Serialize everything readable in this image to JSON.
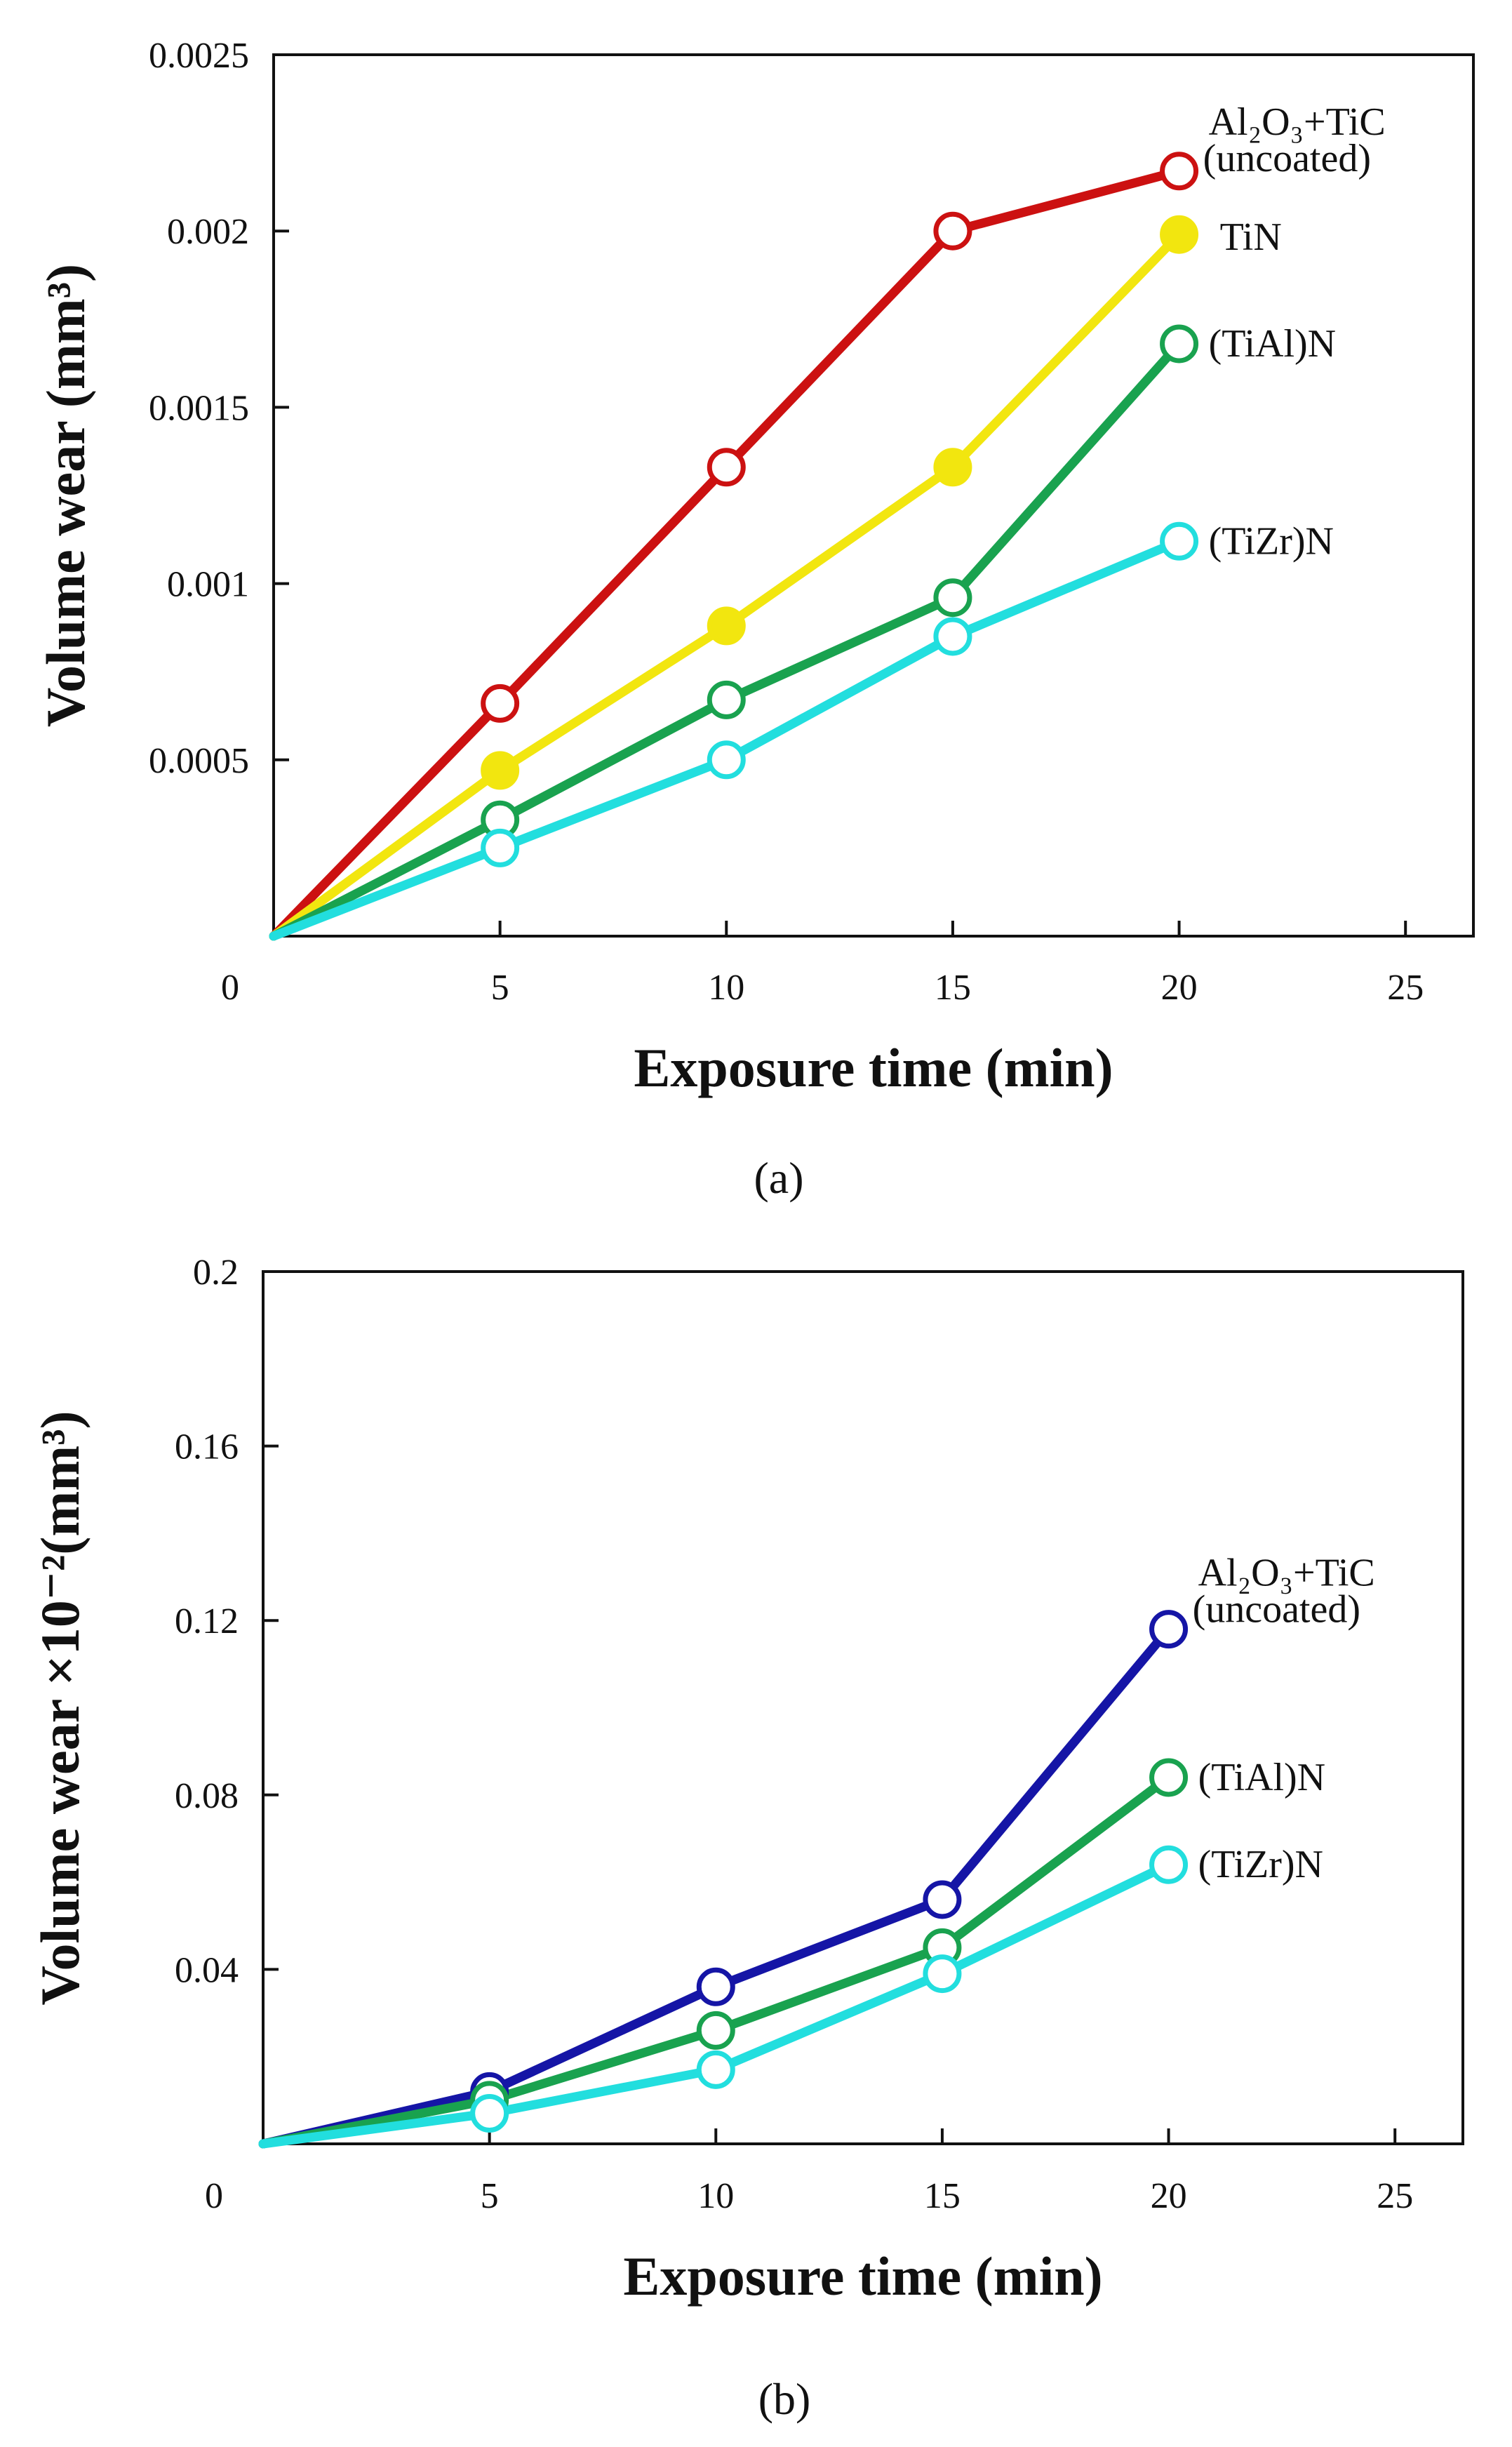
{
  "chart_data": [
    {
      "type": "line",
      "panel_label": "a",
      "panel_label_text": "(a)",
      "xlabel": "Exposure time (min)",
      "ylabel": "Volume wear (mm³)",
      "xlim": [
        0,
        26.5
      ],
      "ylim": [
        0,
        0.0025
      ],
      "x_ticks": [
        5,
        10,
        15,
        20,
        25
      ],
      "x_tick_labels": [
        "5",
        "10",
        "15",
        "20",
        "25"
      ],
      "y_ticks": [
        0.0005,
        0.001,
        0.0015,
        0.002,
        0.0025
      ],
      "y_tick_labels": [
        "0.0005",
        "0.001",
        "0.0015",
        "0.002",
        "0.0025"
      ],
      "origin_label": "0",
      "x": [
        0,
        5,
        10,
        15,
        20
      ],
      "series": [
        {
          "name": "Al2O3+TiC (uncoated)",
          "label_line1": "Al₂O₃+TiC",
          "label_line2": "(uncoated)",
          "color": "#cc1111",
          "marker": "open-circle",
          "values": [
            0,
            0.00066,
            0.00133,
            0.002,
            0.00217
          ]
        },
        {
          "name": "TiN",
          "label_line1": "TiN",
          "label_line2": "",
          "color": "#f2e60f",
          "marker": "filled-circle",
          "values": [
            0,
            0.00047,
            0.00088,
            0.00133,
            0.00199
          ]
        },
        {
          "name": "(TiAl)N",
          "label_line1": "(TiAl)N",
          "label_line2": "",
          "color": "#19a24f",
          "marker": "open-circle",
          "values": [
            0,
            0.00033,
            0.00067,
            0.00096,
            0.00168
          ]
        },
        {
          "name": "(TiZr)N",
          "label_line1": "(TiZr)N",
          "label_line2": "",
          "color": "#22dede",
          "marker": "open-circle",
          "values": [
            0,
            0.00025,
            0.0005,
            0.00085,
            0.00112
          ]
        }
      ]
    },
    {
      "type": "line",
      "panel_label": "b",
      "panel_label_text": "(b)",
      "xlabel": "Exposure time (min)",
      "ylabel": "Volume wear ×10⁻²(mm³)",
      "xlim": [
        0,
        26.5
      ],
      "ylim": [
        0,
        0.2
      ],
      "x_ticks": [
        5,
        10,
        15,
        20,
        25
      ],
      "x_tick_labels": [
        "5",
        "10",
        "15",
        "20",
        "25"
      ],
      "y_ticks": [
        0.04,
        0.08,
        0.12,
        0.16,
        0.2
      ],
      "y_tick_labels": [
        "0.04",
        "0.08",
        "0.12",
        "0.16",
        "0.2"
      ],
      "origin_label": "0",
      "x": [
        0,
        5,
        10,
        15,
        20
      ],
      "series": [
        {
          "name": "Al2O3+TiC (uncoated)",
          "label_line1": "Al₂O₃+TiC",
          "label_line2": "(uncoated)",
          "color": "#1515a6",
          "marker": "open-circle",
          "values": [
            0,
            0.012,
            0.036,
            0.056,
            0.118
          ]
        },
        {
          "name": "(TiAl)N",
          "label_line1": "(TiAl)N",
          "label_line2": "",
          "color": "#19a24f",
          "marker": "open-circle",
          "values": [
            0,
            0.01,
            0.026,
            0.045,
            0.084
          ]
        },
        {
          "name": "(TiZr)N",
          "label_line1": "(TiZr)N",
          "label_line2": "",
          "color": "#22dede",
          "marker": "open-circle",
          "values": [
            0,
            0.007,
            0.017,
            0.039,
            0.064
          ]
        }
      ]
    }
  ]
}
